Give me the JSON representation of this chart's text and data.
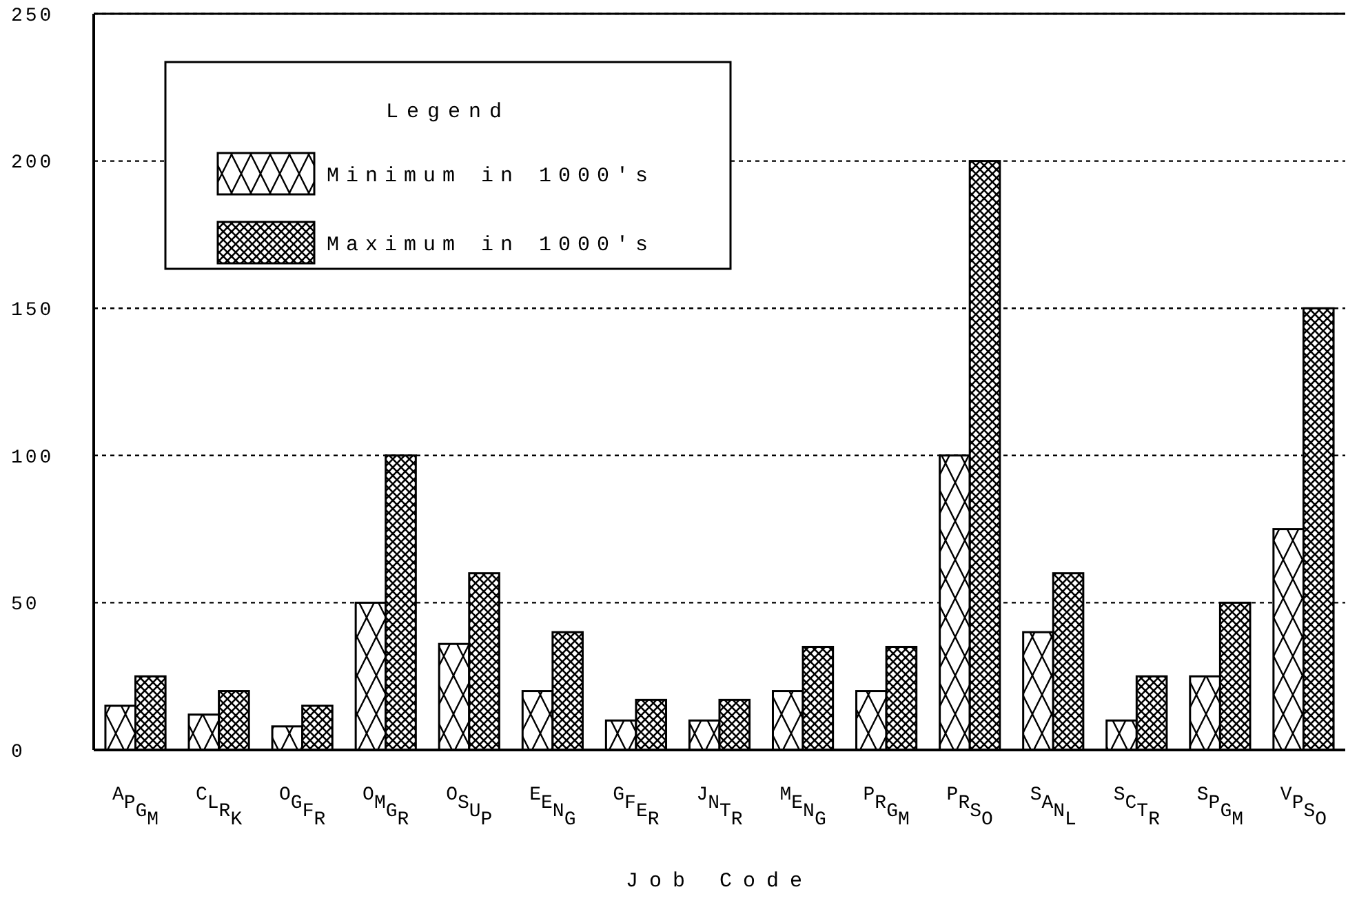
{
  "chart_data": {
    "type": "bar",
    "xlabel": "Job Code",
    "legend_title": "Legend",
    "categories": [
      "APGM",
      "CLRK",
      "OGFR",
      "OMGR",
      "OSUP",
      "EENG",
      "GFER",
      "JNTR",
      "MENG",
      "PRGM",
      "PRSO",
      "SANL",
      "SCTR",
      "SPGM",
      "VPSO"
    ],
    "series": [
      {
        "name": "Minimum in 1000's",
        "color": "#000000",
        "values": [
          15,
          12,
          8,
          50,
          36,
          20,
          10,
          10,
          20,
          20,
          100,
          40,
          10,
          25,
          75
        ]
      },
      {
        "name": "Maximum in 1000's",
        "color": "#000000",
        "values": [
          25,
          20,
          15,
          100,
          60,
          40,
          17,
          17,
          35,
          35,
          200,
          60,
          25,
          50,
          150
        ]
      }
    ],
    "ylim": [
      0,
      250
    ],
    "yticks": [
      0,
      50,
      100,
      150,
      200,
      250
    ],
    "grid": "y",
    "legend": "top left"
  }
}
